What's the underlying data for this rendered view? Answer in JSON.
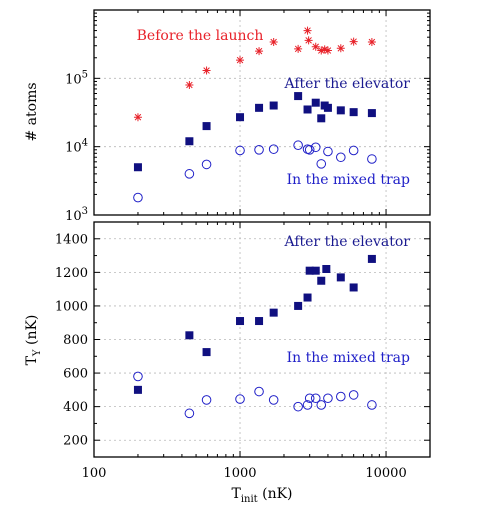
{
  "chart_data": [
    {
      "type": "scatter",
      "x_scale": "log",
      "y_scale": "log",
      "xlim": [
        100,
        20000
      ],
      "ylim": [
        1000,
        1000000
      ],
      "ylabel": "# atoms",
      "yticks": [
        {
          "value": 1000,
          "base": "10",
          "exp": "3"
        },
        {
          "value": 10000,
          "base": "10",
          "exp": "4"
        },
        {
          "value": 100000,
          "base": "10",
          "exp": "5"
        }
      ],
      "grid": true,
      "series": [
        {
          "name": "Before the launch",
          "marker": "star",
          "color": "#e8222a",
          "x": [
            200,
            450,
            590,
            1000,
            1350,
            1700,
            2500,
            2900,
            2950,
            3300,
            3600,
            3800,
            4000,
            4900,
            6000,
            8000
          ],
          "y": [
            27000,
            80000,
            130000,
            185000,
            250000,
            340000,
            270000,
            500000,
            360000,
            290000,
            255000,
            265000,
            255000,
            275000,
            345000,
            340000
          ]
        },
        {
          "name": "After the elevator",
          "marker": "filled-square",
          "color": "#101080",
          "x": [
            200,
            450,
            590,
            1000,
            1350,
            1700,
            2500,
            2900,
            3300,
            3600,
            3800,
            4000,
            4900,
            6000,
            8000
          ],
          "y": [
            5000,
            12000,
            20000,
            27000,
            37000,
            40000,
            55000,
            35000,
            44000,
            26000,
            40000,
            37000,
            34000,
            32000,
            31000
          ]
        },
        {
          "name": "In the mixed trap",
          "marker": "open-circle",
          "color": "#2020c8",
          "x": [
            200,
            450,
            590,
            1000,
            1350,
            1700,
            2500,
            2900,
            3000,
            3300,
            3600,
            4000,
            4900,
            6000,
            8000
          ],
          "y": [
            1800,
            4000,
            5500,
            8800,
            9000,
            9200,
            10500,
            9200,
            9000,
            9800,
            5600,
            8500,
            7000,
            8800,
            6600
          ]
        }
      ]
    },
    {
      "type": "scatter",
      "x_scale": "log",
      "xlim": [
        100,
        20000
      ],
      "ylim": [
        100,
        1500
      ],
      "xlabel_main": "T",
      "xlabel_sub": "init",
      "xlabel_unit": " (nK)",
      "ylabel_main": "T",
      "ylabel_sub": "Y",
      "ylabel_unit": " (nK)",
      "xticks": [
        {
          "value": 100,
          "label": "100"
        },
        {
          "value": 1000,
          "label": "1000"
        },
        {
          "value": 10000,
          "label": "10000"
        }
      ],
      "yticks": [
        {
          "value": 200,
          "label": "200"
        },
        {
          "value": 400,
          "label": "400"
        },
        {
          "value": 600,
          "label": "600"
        },
        {
          "value": 800,
          "label": "800"
        },
        {
          "value": 1000,
          "label": "1000"
        },
        {
          "value": 1200,
          "label": "1200"
        },
        {
          "value": 1400,
          "label": "1400"
        }
      ],
      "grid": true,
      "series": [
        {
          "name": "After the elevator",
          "marker": "filled-square",
          "color": "#101080",
          "x": [
            200,
            450,
            590,
            1000,
            1350,
            1700,
            2500,
            2900,
            3000,
            3300,
            3600,
            3900,
            4900,
            6000,
            8000
          ],
          "y": [
            500,
            825,
            725,
            910,
            910,
            960,
            1000,
            1050,
            1210,
            1210,
            1150,
            1220,
            1170,
            1110,
            1280
          ]
        },
        {
          "name": "In the mixed trap",
          "marker": "open-circle",
          "color": "#2020c8",
          "x": [
            200,
            450,
            590,
            1000,
            1350,
            1700,
            2500,
            2900,
            3000,
            3300,
            3600,
            4000,
            4900,
            6000,
            8000
          ],
          "y": [
            580,
            360,
            440,
            445,
            490,
            440,
            400,
            410,
            450,
            450,
            410,
            450,
            460,
            470,
            410
          ]
        }
      ]
    }
  ]
}
